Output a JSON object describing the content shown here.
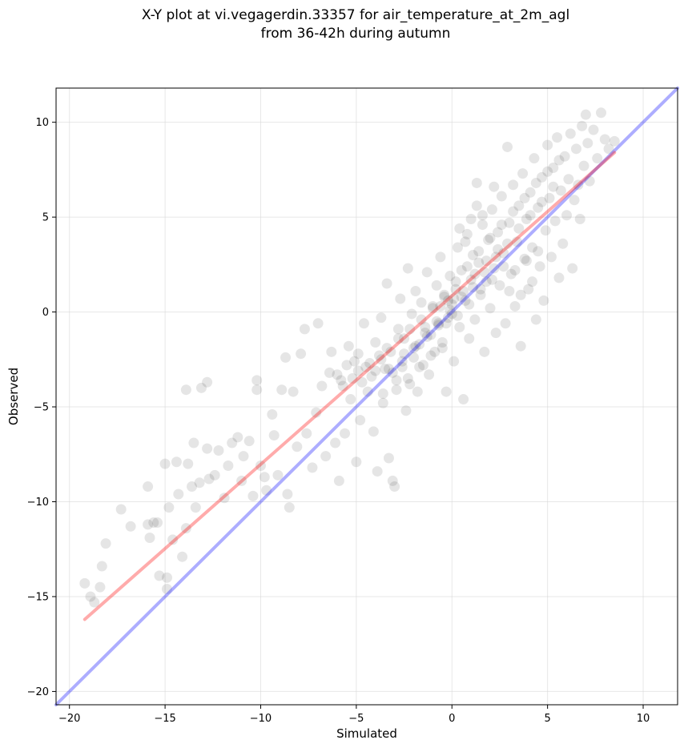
{
  "chart_data": {
    "type": "scatter",
    "title_line1": "X-Y plot at vi.vegagerdin.33357 for air_temperature_at_2m_agl",
    "title_line2": "from 36-42h during autumn",
    "xlabel": "Simulated",
    "ylabel": "Observed",
    "xlim": [
      -20.7,
      11.8
    ],
    "ylim": [
      -20.7,
      11.8
    ],
    "xticks": [
      -20,
      -15,
      -10,
      -5,
      0,
      5,
      10
    ],
    "yticks": [
      -20,
      -15,
      -10,
      -5,
      0,
      5,
      10
    ],
    "xtick_labels": [
      "−20",
      "−15",
      "−10",
      "−5",
      "0",
      "5",
      "10"
    ],
    "ytick_labels": [
      "−20",
      "−15",
      "−10",
      "−5",
      "0",
      "5",
      "10"
    ],
    "grid": true,
    "colors": {
      "points": "#000000",
      "identity": "#0000ff",
      "fit": "#ff0000"
    },
    "identity_line": {
      "x": [
        -20.7,
        11.8
      ],
      "y": [
        -20.7,
        11.8
      ]
    },
    "fit_line": {
      "x": [
        -19.2,
        8.5
      ],
      "y": [
        -16.2,
        8.4
      ]
    },
    "points": [
      [
        -19.2,
        -14.3
      ],
      [
        -18.9,
        -15.0
      ],
      [
        -18.7,
        -15.3
      ],
      [
        -18.4,
        -14.5
      ],
      [
        -18.3,
        -13.4
      ],
      [
        -18.1,
        -12.2
      ],
      [
        -17.3,
        -10.4
      ],
      [
        -16.8,
        -11.3
      ],
      [
        -15.9,
        -9.2
      ],
      [
        -15.9,
        -11.2
      ],
      [
        -15.8,
        -11.9
      ],
      [
        -15.6,
        -11.1
      ],
      [
        -15.4,
        -11.1
      ],
      [
        -15.3,
        -13.9
      ],
      [
        -15.0,
        -8.0
      ],
      [
        -14.9,
        -14.0
      ],
      [
        -14.9,
        -14.6
      ],
      [
        -14.8,
        -10.3
      ],
      [
        -14.6,
        -12.0
      ],
      [
        -14.4,
        -7.9
      ],
      [
        -14.3,
        -9.6
      ],
      [
        -14.1,
        -12.9
      ],
      [
        -13.9,
        -11.4
      ],
      [
        -13.9,
        -4.1
      ],
      [
        -13.8,
        -8.0
      ],
      [
        -13.6,
        -9.2
      ],
      [
        -13.5,
        -6.9
      ],
      [
        -13.4,
        -10.3
      ],
      [
        -13.2,
        -9.0
      ],
      [
        -13.1,
        -4.0
      ],
      [
        -12.8,
        -3.7
      ],
      [
        -12.8,
        -7.2
      ],
      [
        -12.7,
        -8.8
      ],
      [
        -12.4,
        -8.6
      ],
      [
        -12.2,
        -7.3
      ],
      [
        -11.9,
        -9.8
      ],
      [
        -11.7,
        -8.1
      ],
      [
        -11.5,
        -6.9
      ],
      [
        -11.2,
        -6.6
      ],
      [
        -11.0,
        -8.9
      ],
      [
        -10.9,
        -7.6
      ],
      [
        -10.6,
        -6.8
      ],
      [
        -10.4,
        -9.7
      ],
      [
        -10.2,
        -4.1
      ],
      [
        -10.2,
        -3.6
      ],
      [
        -10.0,
        -8.1
      ],
      [
        -9.8,
        -8.7
      ],
      [
        -9.7,
        -9.4
      ],
      [
        -9.4,
        -5.4
      ],
      [
        -9.3,
        -6.5
      ],
      [
        -9.1,
        -8.6
      ],
      [
        -8.9,
        -4.1
      ],
      [
        -8.7,
        -2.4
      ],
      [
        -8.6,
        -9.6
      ],
      [
        -8.5,
        -10.3
      ],
      [
        -8.3,
        -4.2
      ],
      [
        -8.1,
        -7.1
      ],
      [
        -7.9,
        -2.2
      ],
      [
        -7.7,
        -0.9
      ],
      [
        -7.6,
        -6.4
      ],
      [
        -7.3,
        -8.2
      ],
      [
        -7.1,
        -5.3
      ],
      [
        -7.0,
        -0.6
      ],
      [
        -6.8,
        -3.9
      ],
      [
        -6.6,
        -7.6
      ],
      [
        -6.4,
        -3.2
      ],
      [
        -6.3,
        -2.1
      ],
      [
        -6.1,
        -6.9
      ],
      [
        -5.9,
        -8.9
      ],
      [
        -5.8,
        -3.6
      ],
      [
        -5.6,
        -6.4
      ],
      [
        -5.4,
        -1.8
      ],
      [
        -5.3,
        -4.6
      ],
      [
        -5.1,
        -2.6
      ],
      [
        -5.0,
        -7.9
      ],
      [
        -4.9,
        -3.1
      ],
      [
        -4.8,
        -5.7
      ],
      [
        -4.6,
        -0.6
      ],
      [
        -4.5,
        -2.9
      ],
      [
        -4.4,
        -4.2
      ],
      [
        -4.2,
        -3.4
      ],
      [
        -4.1,
        -6.3
      ],
      [
        -4.0,
        -1.6
      ],
      [
        -3.9,
        -8.4
      ],
      [
        -3.8,
        -2.3
      ],
      [
        -3.7,
        -0.3
      ],
      [
        -3.6,
        -4.8
      ],
      [
        -3.5,
        -3.0
      ],
      [
        -3.4,
        1.5
      ],
      [
        -3.3,
        -7.7
      ],
      [
        -3.2,
        -2.1
      ],
      [
        -3.1,
        -8.9
      ],
      [
        -3.0,
        -9.2
      ],
      [
        -2.9,
        -3.6
      ],
      [
        -2.8,
        -0.9
      ],
      [
        -2.7,
        0.7
      ],
      [
        -2.6,
        -2.9
      ],
      [
        -2.5,
        -1.4
      ],
      [
        -2.4,
        -5.2
      ],
      [
        -2.3,
        2.3
      ],
      [
        -2.2,
        -3.8
      ],
      [
        -2.1,
        -0.1
      ],
      [
        -2.0,
        -2.4
      ],
      [
        -1.9,
        1.1
      ],
      [
        -1.8,
        -4.2
      ],
      [
        -1.7,
        -1.7
      ],
      [
        -1.6,
        0.5
      ],
      [
        -1.5,
        -2.8
      ],
      [
        -1.4,
        -0.8
      ],
      [
        -1.3,
        2.1
      ],
      [
        -1.2,
        -3.3
      ],
      [
        -1.1,
        -1.2
      ],
      [
        -1.0,
        0.3
      ],
      [
        -0.9,
        -2.1
      ],
      [
        -0.8,
        1.4
      ],
      [
        -0.7,
        -0.6
      ],
      [
        -0.6,
        2.9
      ],
      [
        -0.5,
        -1.9
      ],
      [
        -0.4,
        0.8
      ],
      [
        -0.3,
        -4.2
      ],
      [
        -0.2,
        -0.3
      ],
      [
        -0.1,
        1.9
      ],
      [
        0.0,
        -0.1
      ],
      [
        0.0,
        0.4
      ],
      [
        0.1,
        -2.6
      ],
      [
        0.2,
        1.2
      ],
      [
        0.3,
        3.4
      ],
      [
        0.4,
        -0.8
      ],
      [
        0.5,
        2.2
      ],
      [
        0.6,
        -4.6
      ],
      [
        0.7,
        0.6
      ],
      [
        0.8,
        4.1
      ],
      [
        0.9,
        -1.4
      ],
      [
        1.0,
        1.7
      ],
      [
        1.1,
        3.0
      ],
      [
        1.2,
        -0.4
      ],
      [
        1.3,
        6.8
      ],
      [
        1.4,
        2.6
      ],
      [
        1.5,
        0.9
      ],
      [
        1.6,
        4.6
      ],
      [
        1.7,
        -2.1
      ],
      [
        1.8,
        1.6
      ],
      [
        1.9,
        3.8
      ],
      [
        2.0,
        0.2
      ],
      [
        2.1,
        5.4
      ],
      [
        2.2,
        2.3
      ],
      [
        2.3,
        -1.1
      ],
      [
        2.4,
        4.2
      ],
      [
        2.5,
        1.4
      ],
      [
        2.6,
        6.1
      ],
      [
        2.7,
        3.1
      ],
      [
        2.8,
        -0.6
      ],
      [
        2.9,
        8.7
      ],
      [
        3.0,
        4.7
      ],
      [
        3.1,
        2.0
      ],
      [
        3.2,
        6.7
      ],
      [
        3.3,
        0.3
      ],
      [
        3.4,
        3.7
      ],
      [
        3.5,
        5.6
      ],
      [
        3.6,
        -1.8
      ],
      [
        3.7,
        7.3
      ],
      [
        3.8,
        2.8
      ],
      [
        3.9,
        4.9
      ],
      [
        4.0,
        1.2
      ],
      [
        4.1,
        6.3
      ],
      [
        4.2,
        3.4
      ],
      [
        4.3,
        8.1
      ],
      [
        4.4,
        -0.4
      ],
      [
        4.5,
        5.5
      ],
      [
        4.6,
        2.4
      ],
      [
        4.7,
        7.1
      ],
      [
        4.8,
        0.6
      ],
      [
        4.9,
        4.3
      ],
      [
        5.0,
        8.8
      ],
      [
        5.1,
        6.0
      ],
      [
        5.2,
        2.9
      ],
      [
        5.3,
        7.6
      ],
      [
        5.4,
        4.8
      ],
      [
        5.5,
        9.2
      ],
      [
        5.6,
        1.8
      ],
      [
        5.7,
        6.4
      ],
      [
        5.8,
        3.6
      ],
      [
        5.9,
        8.2
      ],
      [
        6.0,
        5.1
      ],
      [
        6.1,
        7.0
      ],
      [
        6.2,
        9.4
      ],
      [
        6.3,
        2.3
      ],
      [
        6.4,
        5.9
      ],
      [
        6.5,
        8.6
      ],
      [
        6.6,
        6.7
      ],
      [
        6.7,
        4.9
      ],
      [
        6.8,
        9.8
      ],
      [
        6.9,
        7.7
      ],
      [
        7.0,
        10.4
      ],
      [
        7.1,
        8.9
      ],
      [
        7.2,
        6.9
      ],
      [
        7.4,
        9.6
      ],
      [
        7.6,
        8.1
      ],
      [
        7.8,
        10.5
      ],
      [
        8.0,
        9.1
      ],
      [
        8.2,
        8.6
      ],
      [
        8.5,
        9.0
      ],
      [
        -6.0,
        -3.3
      ],
      [
        -5.7,
        -3.9
      ],
      [
        -5.5,
        -2.8
      ],
      [
        -5.2,
        -3.5
      ],
      [
        -4.9,
        -2.2
      ],
      [
        -4.7,
        -3.7
      ],
      [
        -4.3,
        -2.7
      ],
      [
        -4.0,
        -3.1
      ],
      [
        -3.7,
        -2.5
      ],
      [
        -3.4,
        -1.9
      ],
      [
        -3.1,
        -3.2
      ],
      [
        -2.8,
        -1.4
      ],
      [
        -2.5,
        -2.2
      ],
      [
        -2.2,
        -0.9
      ],
      [
        -1.9,
        -1.8
      ],
      [
        -1.6,
        -0.4
      ],
      [
        -1.3,
        -1.3
      ],
      [
        -1.0,
        0.2
      ],
      [
        -0.7,
        -0.7
      ],
      [
        -0.4,
        0.9
      ],
      [
        -0.1,
        0.1
      ],
      [
        0.2,
        1.6
      ],
      [
        0.5,
        0.8
      ],
      [
        0.8,
        2.4
      ],
      [
        1.1,
        1.3
      ],
      [
        1.4,
        3.2
      ],
      [
        1.7,
        2.1
      ],
      [
        2.0,
        3.9
      ],
      [
        2.3,
        2.9
      ],
      [
        2.6,
        4.6
      ],
      [
        2.9,
        3.6
      ],
      [
        3.2,
        5.3
      ],
      [
        3.5,
        4.4
      ],
      [
        3.8,
        6.0
      ],
      [
        4.1,
        5.1
      ],
      [
        4.4,
        6.8
      ],
      [
        4.7,
        5.8
      ],
      [
        5.0,
        7.4
      ],
      [
        5.3,
        6.6
      ],
      [
        5.6,
        8.0
      ],
      [
        -0.6,
        0.3
      ],
      [
        -0.3,
        -0.6
      ],
      [
        0.1,
        0.7
      ],
      [
        0.3,
        -0.2
      ],
      [
        0.6,
        1.1
      ],
      [
        0.9,
        0.4
      ],
      [
        1.2,
        2.0
      ],
      [
        1.5,
        1.2
      ],
      [
        1.8,
        2.7
      ],
      [
        2.1,
        1.7
      ],
      [
        2.4,
        3.3
      ],
      [
        2.7,
        2.4
      ],
      [
        -3.6,
        -4.3
      ],
      [
        -3.3,
        -3.0
      ],
      [
        -2.9,
        -4.1
      ],
      [
        -2.6,
        -2.6
      ],
      [
        -2.3,
        -3.5
      ],
      [
        -2.0,
        -1.9
      ],
      [
        -1.7,
        -2.9
      ],
      [
        -1.4,
        -1.1
      ],
      [
        -1.1,
        -2.3
      ],
      [
        -0.8,
        -0.5
      ],
      [
        -0.5,
        -1.6
      ],
      [
        -0.2,
        0.6
      ],
      [
        3.0,
        1.1
      ],
      [
        3.3,
        2.2
      ],
      [
        3.6,
        0.9
      ],
      [
        3.9,
        2.7
      ],
      [
        4.2,
        1.6
      ],
      [
        4.5,
        3.2
      ],
      [
        1.0,
        4.9
      ],
      [
        1.3,
        5.6
      ],
      [
        0.7,
        3.7
      ],
      [
        0.4,
        4.4
      ],
      [
        1.6,
        5.1
      ],
      [
        2.2,
        6.6
      ]
    ]
  }
}
